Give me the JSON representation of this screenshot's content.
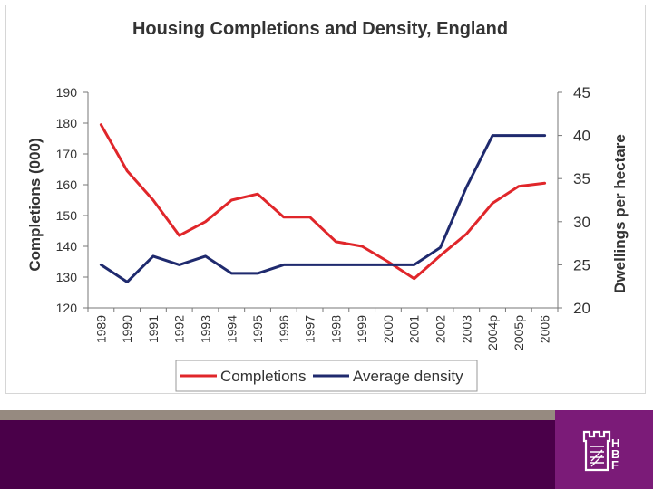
{
  "chart_data": {
    "type": "line",
    "title": "Housing Completions and Density, England",
    "xlabel": "",
    "ylabel": "Completions (000)",
    "y2label": "Dwellings per hectare",
    "categories": [
      "1989",
      "1990",
      "1991",
      "1992",
      "1993",
      "1994",
      "1995",
      "1996",
      "1997",
      "1998",
      "1999",
      "2000",
      "2001",
      "2002",
      "2003",
      "2004p",
      "2005p",
      "2006"
    ],
    "ylim": [
      120,
      190
    ],
    "y_ticks": [
      120,
      130,
      140,
      150,
      160,
      170,
      180,
      190
    ],
    "y2lim": [
      20,
      45
    ],
    "y2_ticks": [
      20,
      25,
      30,
      35,
      40,
      45
    ],
    "legend_position": "bottom",
    "series": [
      {
        "name": "Completions",
        "axis": "left",
        "color": "#e0262a",
        "values": [
          179.5,
          164.5,
          155,
          143.5,
          148,
          155,
          157,
          149.5,
          149.5,
          141.5,
          140,
          135,
          129.5,
          137,
          144,
          154,
          159.5,
          160.5
        ]
      },
      {
        "name": "Average density",
        "axis": "right",
        "color": "#1f2a6e",
        "values": [
          25,
          23,
          26,
          25,
          26,
          24,
          24,
          25,
          25,
          25,
          25,
          25,
          25,
          27,
          34,
          40,
          40,
          40
        ]
      }
    ]
  },
  "colors": {
    "completions": "#e0262a",
    "density": "#1f2a6e",
    "footer": "#4a0049",
    "strip": "#968a80",
    "logo_tile": "#7b1b78"
  },
  "logo": {
    "icon": "castle-tower-logo-icon",
    "wordmark": "HBF"
  }
}
